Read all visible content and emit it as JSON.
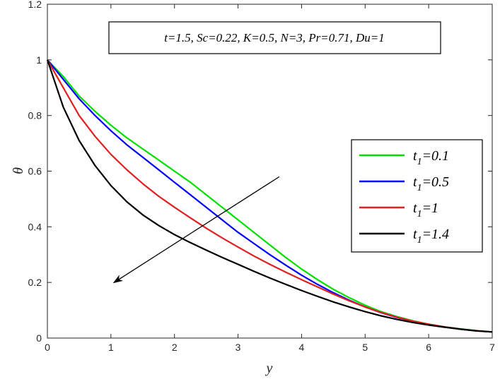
{
  "chart_data": {
    "type": "line",
    "title": "",
    "xlabel": "y",
    "ylabel": "θ",
    "xlim": [
      0,
      7
    ],
    "ylim": [
      0,
      1.2
    ],
    "xticks": [
      "0",
      "1",
      "2",
      "3",
      "4",
      "5",
      "6",
      "7"
    ],
    "yticks": [
      "0",
      "0.2",
      "0.4",
      "0.6",
      "0.8",
      "1",
      "1.2"
    ],
    "annotation": "t=1.5, Sc=0.22, K=0.5, N=3, Pr=0.71, Du=1",
    "legend_position": "right",
    "grid": false,
    "arrow": {
      "from": [
        3.65,
        0.58
      ],
      "to": [
        1.05,
        0.2
      ]
    },
    "series": [
      {
        "name_parts": {
          "main": "t",
          "sub": "1",
          "rest": "=0.1"
        },
        "color": "#00e000",
        "x": [
          0,
          0.25,
          0.5,
          0.75,
          1,
          1.25,
          1.5,
          1.75,
          2,
          2.25,
          2.5,
          2.75,
          3,
          3.25,
          3.5,
          3.75,
          4,
          4.25,
          4.5,
          4.75,
          5,
          5.25,
          5.5,
          5.75,
          6,
          6.25,
          6.5,
          6.75,
          7
        ],
        "values": [
          1.0,
          0.94,
          0.87,
          0.815,
          0.765,
          0.72,
          0.68,
          0.64,
          0.6,
          0.56,
          0.515,
          0.47,
          0.425,
          0.38,
          0.335,
          0.29,
          0.248,
          0.21,
          0.175,
          0.145,
          0.118,
          0.095,
          0.077,
          0.062,
          0.05,
          0.04,
          0.033,
          0.027,
          0.022
        ]
      },
      {
        "name_parts": {
          "main": "t",
          "sub": "1",
          "rest": "=0.5"
        },
        "color": "#0000ff",
        "x": [
          0,
          0.25,
          0.5,
          0.75,
          1,
          1.25,
          1.5,
          1.75,
          2,
          2.25,
          2.5,
          2.75,
          3,
          3.25,
          3.5,
          3.75,
          4,
          4.25,
          4.5,
          4.75,
          5,
          5.25,
          5.5,
          5.75,
          6,
          6.25,
          6.5,
          6.75,
          7
        ],
        "values": [
          1.0,
          0.93,
          0.86,
          0.8,
          0.745,
          0.695,
          0.65,
          0.605,
          0.56,
          0.515,
          0.47,
          0.425,
          0.38,
          0.34,
          0.3,
          0.262,
          0.226,
          0.193,
          0.163,
          0.136,
          0.112,
          0.091,
          0.074,
          0.06,
          0.049,
          0.04,
          0.032,
          0.026,
          0.022
        ]
      },
      {
        "name_parts": {
          "main": "t",
          "sub": "1",
          "rest": "=1"
        },
        "color": "#e02020",
        "x": [
          0,
          0.25,
          0.5,
          0.75,
          1,
          1.25,
          1.5,
          1.75,
          2,
          2.25,
          2.5,
          2.75,
          3,
          3.25,
          3.5,
          3.75,
          4,
          4.25,
          4.5,
          4.75,
          5,
          5.25,
          5.5,
          5.75,
          6,
          6.25,
          6.5,
          6.75,
          7
        ],
        "values": [
          1.0,
          0.9,
          0.8,
          0.725,
          0.66,
          0.605,
          0.555,
          0.51,
          0.47,
          0.432,
          0.395,
          0.36,
          0.327,
          0.295,
          0.265,
          0.237,
          0.21,
          0.184,
          0.158,
          0.134,
          0.112,
          0.092,
          0.075,
          0.061,
          0.05,
          0.04,
          0.032,
          0.026,
          0.022
        ]
      },
      {
        "name_parts": {
          "main": "t",
          "sub": "1",
          "rest": "=1.4"
        },
        "color": "#000000",
        "x": [
          0,
          0.25,
          0.5,
          0.75,
          1,
          1.25,
          1.5,
          1.75,
          2,
          2.25,
          2.5,
          2.75,
          3,
          3.25,
          3.5,
          3.75,
          4,
          4.25,
          4.5,
          4.75,
          5,
          5.25,
          5.5,
          5.75,
          6,
          6.25,
          6.5,
          6.75,
          7
        ],
        "values": [
          1.0,
          0.83,
          0.71,
          0.62,
          0.548,
          0.49,
          0.443,
          0.405,
          0.372,
          0.343,
          0.316,
          0.29,
          0.265,
          0.24,
          0.216,
          0.193,
          0.171,
          0.15,
          0.13,
          0.112,
          0.095,
          0.08,
          0.067,
          0.056,
          0.047,
          0.039,
          0.032,
          0.026,
          0.022
        ]
      }
    ]
  }
}
